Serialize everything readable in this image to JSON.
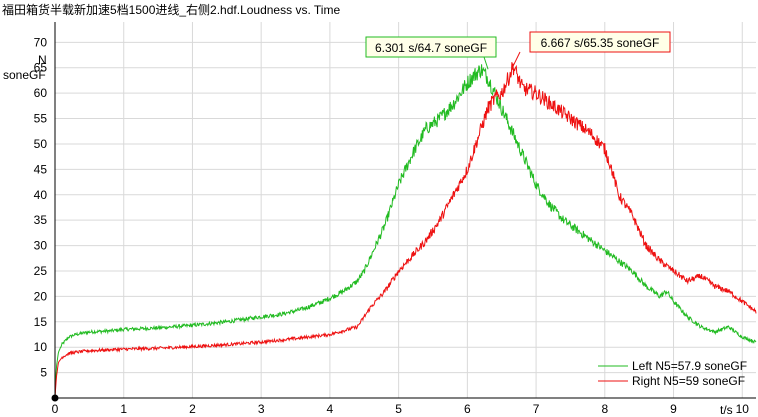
{
  "header": {
    "title": "福田箱货半载新加速5档1500进线_右侧2.hdf.Loudness vs. Time"
  },
  "chart_data": {
    "type": "line",
    "title": "福田箱货半载新加速5档1500进线_右侧2.hdf.Loudness vs. Time",
    "xlabel": "t/s",
    "ylabel": "N\nsoneGF",
    "ylabel_lines": [
      "N",
      "soneGF"
    ],
    "xlim": [
      0,
      10.2
    ],
    "ylim": [
      0,
      74
    ],
    "x_ticks": [
      0,
      1,
      2,
      3,
      4,
      5,
      6,
      7,
      8,
      9,
      10
    ],
    "y_ticks": [
      5,
      10,
      15,
      20,
      25,
      30,
      35,
      40,
      45,
      50,
      55,
      60,
      65,
      70
    ],
    "grid": true,
    "legend_position": "bottom-right",
    "series": [
      {
        "name": "Left N5=57.9 soneGF",
        "color": "#22bb22",
        "x": [
          0,
          0.02,
          0.05,
          0.1,
          0.2,
          0.3,
          0.5,
          0.8,
          1.0,
          1.5,
          2.0,
          2.5,
          3.0,
          3.3,
          3.6,
          3.9,
          4.2,
          4.4,
          4.5,
          4.6,
          4.8,
          5.0,
          5.2,
          5.4,
          5.6,
          5.8,
          6.0,
          6.1,
          6.2,
          6.3,
          6.4,
          6.5,
          6.6,
          6.7,
          6.8,
          6.9,
          7.0,
          7.2,
          7.4,
          7.6,
          7.8,
          8.0,
          8.2,
          8.4,
          8.6,
          8.8,
          8.9,
          9.0,
          9.2,
          9.4,
          9.6,
          9.8,
          10.0,
          10.2
        ],
        "y": [
          0,
          6,
          9,
          10.5,
          12,
          12.5,
          13,
          13.2,
          13.5,
          13.8,
          14.3,
          15,
          16,
          16.5,
          17.5,
          19,
          21,
          23,
          25,
          28,
          34,
          42,
          48,
          53,
          55,
          58,
          62,
          63.5,
          64.7,
          63,
          60,
          57,
          54,
          51,
          48,
          45,
          42,
          38,
          35,
          33,
          31,
          29,
          27,
          25,
          22,
          20,
          21,
          19,
          16,
          14,
          13,
          14,
          12,
          11
        ]
      },
      {
        "name": "Right N5=59 soneGF",
        "color": "#ee1111",
        "x": [
          0,
          0.02,
          0.05,
          0.1,
          0.2,
          0.3,
          0.5,
          0.8,
          1.0,
          1.5,
          2.0,
          2.5,
          3.0,
          3.5,
          4.0,
          4.4,
          4.5,
          4.6,
          4.8,
          5.0,
          5.2,
          5.4,
          5.6,
          5.8,
          6.0,
          6.2,
          6.3,
          6.4,
          6.5,
          6.6,
          6.667,
          6.8,
          7.0,
          7.2,
          7.4,
          7.6,
          7.8,
          8.0,
          8.1,
          8.2,
          8.3,
          8.4,
          8.6,
          8.8,
          9.0,
          9.2,
          9.4,
          9.6,
          9.8,
          10.0,
          10.2
        ],
        "y": [
          0,
          4,
          7,
          8,
          8.8,
          9,
          9.3,
          9.5,
          9.6,
          9.8,
          10.1,
          10.5,
          11,
          11.7,
          12.5,
          14,
          16,
          18,
          21,
          25,
          28,
          31,
          35,
          40,
          45,
          53,
          57,
          59,
          60,
          63,
          65.35,
          61,
          60,
          58,
          56,
          54,
          52,
          49,
          45,
          40,
          38,
          36,
          30,
          27,
          25,
          23,
          24,
          22,
          21,
          19,
          17
        ]
      }
    ],
    "annotations": [
      {
        "text": "6.301 s/64.7 soneGF",
        "x": 6.301,
        "y": 64.7,
        "series": 0
      },
      {
        "text": "6.667 s/65.35 soneGF",
        "x": 6.667,
        "y": 65.35,
        "series": 1
      }
    ]
  }
}
